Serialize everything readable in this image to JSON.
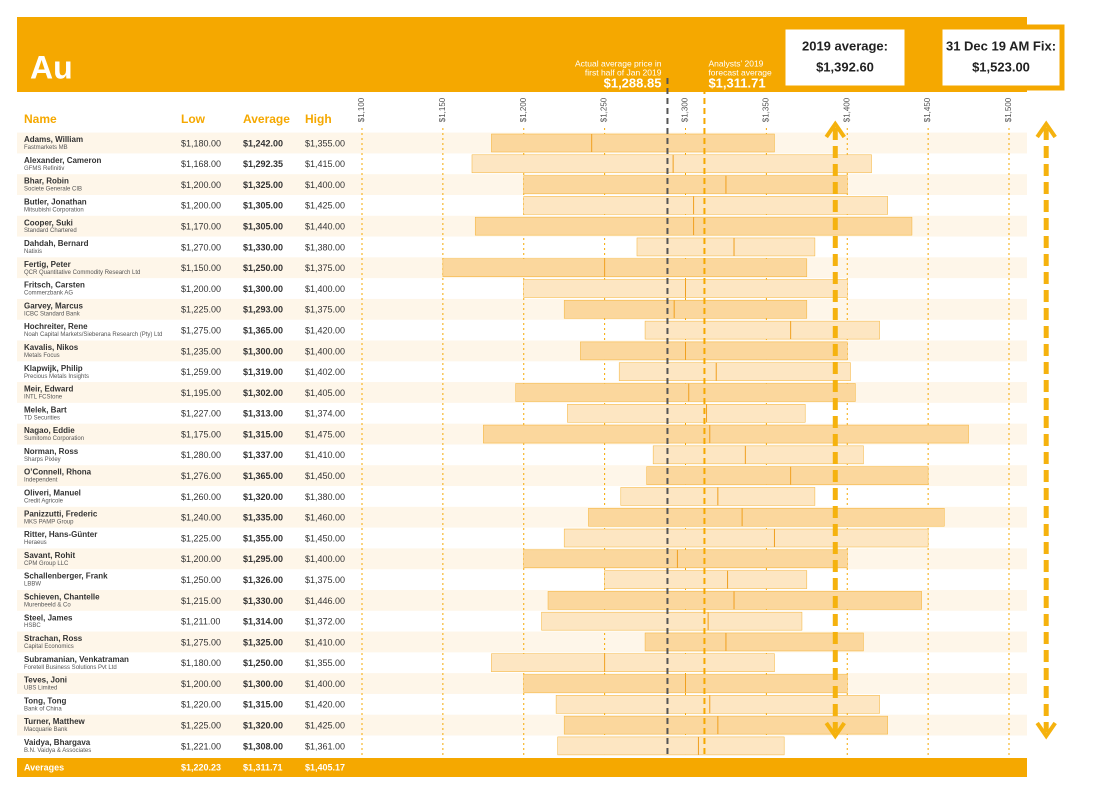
{
  "chart_data": {
    "type": "range",
    "title": "Au",
    "name_header": "Name",
    "xlim": [
      1100,
      1500
    ],
    "xticks": [
      {
        "value": 1100,
        "label": "$1,100"
      },
      {
        "value": 1150,
        "label": "$1,150"
      },
      {
        "value": 1200,
        "label": "$1,200"
      },
      {
        "value": 1250,
        "label": "$1,250"
      },
      {
        "value": 1300,
        "label": "$1,300"
      },
      {
        "value": 1350,
        "label": "$1,350"
      },
      {
        "value": 1400,
        "label": "$1,400"
      },
      {
        "value": 1450,
        "label": "$1,450"
      },
      {
        "value": 1500,
        "label": "$1,500"
      }
    ],
    "categories": [
      "Adams, William",
      "Alexander, Cameron",
      "Bhar, Robin",
      "Butler, Jonathan",
      "Cooper, Suki",
      "Dahdah, Bernard",
      "Fertig, Peter",
      "Fritsch, Carsten",
      "Garvey, Marcus",
      "Hochreiter, Rene",
      "Kavalis, Nikos",
      "Klapwijk, Philip",
      "Meir, Edward",
      "Melek, Bart",
      "Nagao, Eddie",
      "Norman, Ross",
      "O’Connell, Rhona",
      "Oliveri, Manuel",
      "Panizzutti, Frederic",
      "Ritter, Hans-Günter",
      "Savant, Rohit",
      "Schallenberger, Frank",
      "Schieven, Chantelle",
      "Steel, James",
      "Strachan, Ross",
      "Subramanian, Venkatraman",
      "Teves, Joni",
      "Tong, Tong",
      "Turner, Matthew",
      "Vaidya, Bhargava"
    ],
    "companies": [
      "Fastmarkets MB",
      "GFMS Refinitiv",
      "Societe Generale CIB",
      "Mitsubishi Corporation",
      "Standard Chartered",
      "Natixis",
      "QCR Quantitative Commodity Research Ltd",
      "Commerzbank AG",
      "ICBC Standard Bank",
      "Noah Capital Markets/Sieberana Research (Pty) Ltd",
      "Metals Focus",
      "Precious Metals Insights",
      "INTL FCStone",
      "TD Securities",
      "Sumitomo Corporation",
      "Sharps Pixley",
      "Independent",
      "Credit Agricole",
      "MKS PAMP Group",
      "Heraeus",
      "CPM Group LLC",
      "LBBW",
      "Murenbeeld & Co",
      "HSBC",
      "Capital Economics",
      "Foretell Business Solutions Pvt Ltd",
      "UBS Limited",
      "Bank of China",
      "Macquarie Bank",
      "B.N. Vaidya & Associates"
    ],
    "series": [
      {
        "name": "Low",
        "values": [
          1180,
          1168,
          1200,
          1200,
          1170,
          1270,
          1150,
          1200,
          1225,
          1275,
          1235,
          1259,
          1195,
          1227,
          1175,
          1280,
          1276,
          1260,
          1240,
          1225,
          1200,
          1250,
          1215,
          1211,
          1275,
          1180,
          1200,
          1220,
          1225,
          1221
        ],
        "value_labels": [
          "$1,180.00",
          "$1,168.00",
          "$1,200.00",
          "$1,200.00",
          "$1,170.00",
          "$1,270.00",
          "$1,150.00",
          "$1,200.00",
          "$1,225.00",
          "$1,275.00",
          "$1,235.00",
          "$1,259.00",
          "$1,195.00",
          "$1,227.00",
          "$1,175.00",
          "$1,280.00",
          "$1,276.00",
          "$1,260.00",
          "$1,240.00",
          "$1,225.00",
          "$1,200.00",
          "$1,250.00",
          "$1,215.00",
          "$1,211.00",
          "$1,275.00",
          "$1,180.00",
          "$1,200.00",
          "$1,220.00",
          "$1,225.00",
          "$1,221.00"
        ]
      },
      {
        "name": "Average",
        "values": [
          1242,
          1292.35,
          1325,
          1305,
          1305,
          1330,
          1250,
          1300,
          1293,
          1365,
          1300,
          1319,
          1302,
          1313,
          1315,
          1337,
          1365,
          1320,
          1335,
          1355,
          1295,
          1326,
          1330,
          1314,
          1325,
          1250,
          1300,
          1315,
          1320,
          1308
        ],
        "value_labels": [
          "$1,242.00",
          "$1,292.35",
          "$1,325.00",
          "$1,305.00",
          "$1,305.00",
          "$1,330.00",
          "$1,250.00",
          "$1,300.00",
          "$1,293.00",
          "$1,365.00",
          "$1,300.00",
          "$1,319.00",
          "$1,302.00",
          "$1,313.00",
          "$1,315.00",
          "$1,337.00",
          "$1,365.00",
          "$1,320.00",
          "$1,335.00",
          "$1,355.00",
          "$1,295.00",
          "$1,326.00",
          "$1,330.00",
          "$1,314.00",
          "$1,325.00",
          "$1,250.00",
          "$1,300.00",
          "$1,315.00",
          "$1,320.00",
          "$1,308.00"
        ]
      },
      {
        "name": "High",
        "values": [
          1355,
          1415,
          1400,
          1425,
          1440,
          1380,
          1375,
          1400,
          1375,
          1420,
          1400,
          1402,
          1405,
          1374,
          1475,
          1410,
          1450,
          1380,
          1460,
          1450,
          1400,
          1375,
          1446,
          1372,
          1410,
          1355,
          1400,
          1420,
          1425,
          1361
        ],
        "value_labels": [
          "$1,355.00",
          "$1,415.00",
          "$1,400.00",
          "$1,425.00",
          "$1,440.00",
          "$1,380.00",
          "$1,375.00",
          "$1,400.00",
          "$1,375.00",
          "$1,420.00",
          "$1,400.00",
          "$1,402.00",
          "$1,405.00",
          "$1,374.00",
          "$1,475.00",
          "$1,410.00",
          "$1,450.00",
          "$1,380.00",
          "$1,460.00",
          "$1,450.00",
          "$1,400.00",
          "$1,375.00",
          "$1,446.00",
          "$1,372.00",
          "$1,410.00",
          "$1,355.00",
          "$1,400.00",
          "$1,420.00",
          "$1,425.00",
          "$1,361.00"
        ]
      }
    ],
    "averages": {
      "label": "Averages",
      "values": [
        1220.23,
        1311.71,
        1405.17
      ],
      "value_labels": [
        "$1,220.23",
        "$1,311.71",
        "$1,405.17"
      ]
    },
    "reference_lines": [
      {
        "label": [
          "Actual average price in",
          "first half of Jan 2019"
        ],
        "value": 1288.85,
        "value_label": "$1,288.85",
        "color": "#555555"
      },
      {
        "label": [
          "Analysts’ 2019",
          "forecast average"
        ],
        "value": 1311.71,
        "value_label": "$1,311.71",
        "color": "#f5a800"
      }
    ],
    "callouts": [
      {
        "label": "2019 average:",
        "value": 1392.6,
        "value_label": "$1,392.60"
      },
      {
        "label": "31 Dec 19 AM Fix:",
        "value": 1523,
        "value_label": "$1,523.00"
      }
    ]
  }
}
